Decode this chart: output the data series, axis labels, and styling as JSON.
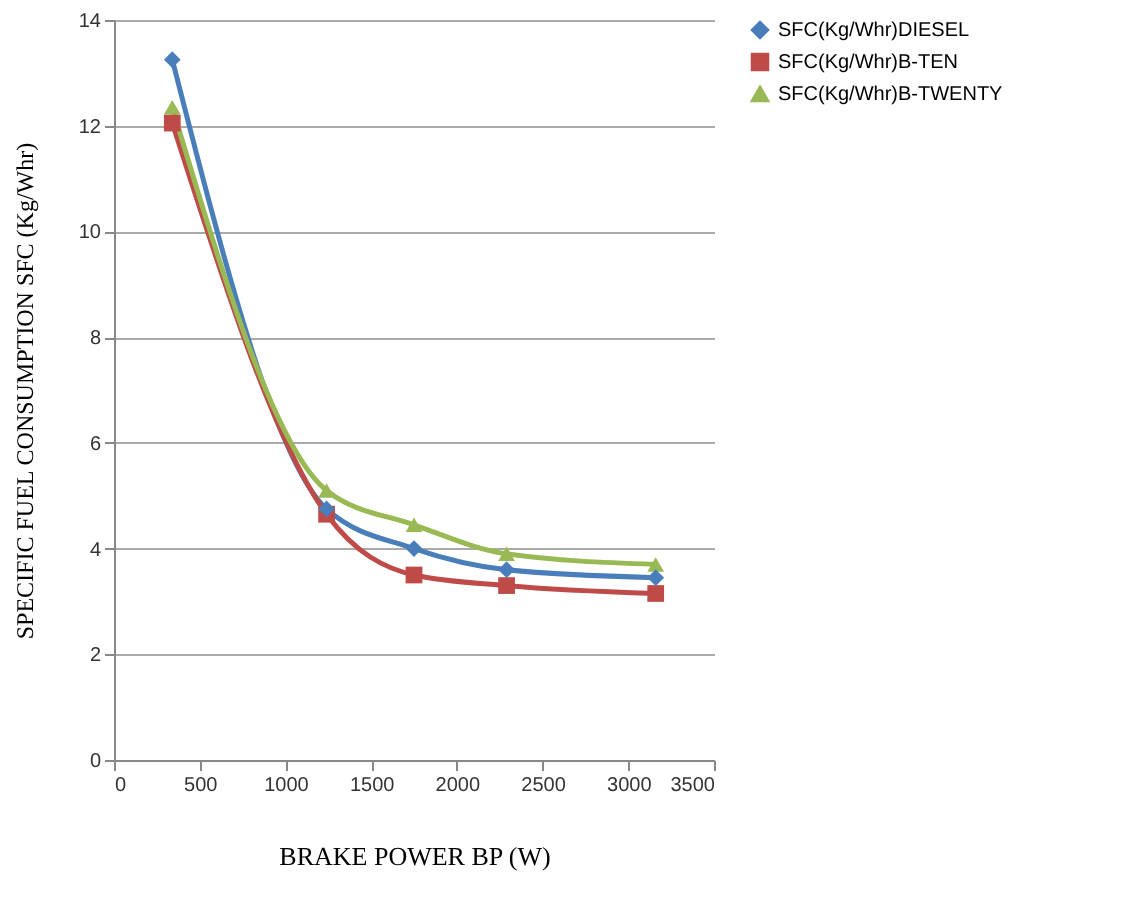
{
  "chart_data": {
    "type": "line",
    "xlabel": "BRAKE POWER BP (W)",
    "ylabel": "SPECIFIC FUEL CONSUMPTION SFC (Kg/Whr)",
    "x": [
      340,
      1240,
      1750,
      2290,
      3160
    ],
    "series": [
      {
        "name": "SFC(Kg/Whr)DIESEL",
        "color": "#4a7ebb",
        "marker": "diamond",
        "values": [
          13.25,
          4.75,
          4.0,
          3.6,
          3.45
        ]
      },
      {
        "name": "SFC(Kg/Whr)B-TEN",
        "color": "#be4b48",
        "marker": "square",
        "values": [
          12.05,
          4.65,
          3.5,
          3.3,
          3.15
        ]
      },
      {
        "name": "SFC(Kg/Whr)B-TWENTY",
        "color": "#98b954",
        "marker": "triangle",
        "values": [
          12.35,
          5.1,
          4.45,
          3.9,
          3.7
        ]
      }
    ],
    "xlim": [
      0,
      3500
    ],
    "xticks": [
      0,
      500,
      1000,
      1500,
      2000,
      2500,
      3000,
      3500
    ],
    "ylim": [
      0,
      14
    ],
    "yticks": [
      0,
      2,
      4,
      6,
      8,
      10,
      12,
      14
    ],
    "grid": "y",
    "legend": "right",
    "line_style": "solid"
  }
}
